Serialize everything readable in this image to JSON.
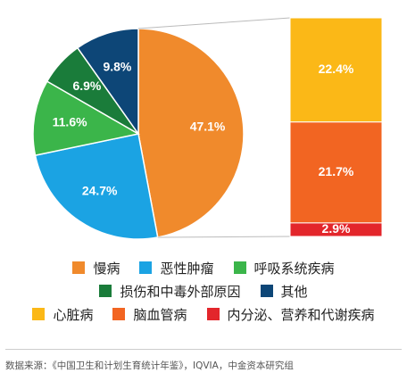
{
  "chart_data": {
    "type": "pie-of-bar",
    "pie": {
      "categories": [
        "慢病",
        "恶性肿瘤",
        "呼吸系统疾病",
        "损伤和中毒外部原因",
        "其他"
      ],
      "values": [
        47.1,
        24.7,
        11.6,
        6.9,
        9.8
      ],
      "value_labels": [
        "47.1%",
        "24.7%",
        "11.6%",
        "6.9%",
        "9.8%"
      ],
      "colors": [
        "#f08a2c",
        "#1ba3e3",
        "#3bb54a",
        "#1a7c3a",
        "#0d4677"
      ]
    },
    "bar": {
      "categories": [
        "心脏病",
        "脑血管病",
        "内分泌、营养和代谢疾病"
      ],
      "values": [
        22.4,
        21.7,
        2.9
      ],
      "value_labels": [
        "22.4%",
        "21.7%",
        "2.9%"
      ],
      "colors": [
        "#fbb817",
        "#f26522",
        "#e3262b"
      ]
    },
    "source": "数据来源：《中国卫生和计划生育统计年鉴》，IQVIA，中金资本研究组"
  }
}
